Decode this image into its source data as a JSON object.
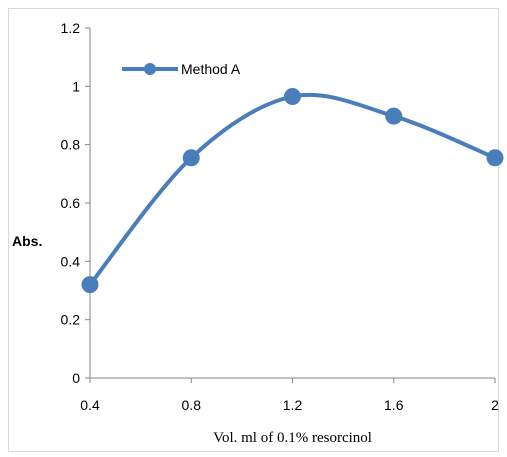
{
  "chart_data": {
    "type": "line",
    "title": "",
    "xlabel": "Vol. ml of 0.1% resorcinol",
    "ylabel": "Abs.",
    "xlim": [
      0.4,
      2
    ],
    "ylim": [
      0,
      1.2
    ],
    "x_tick_labels": [
      "0.4",
      "0.8",
      "1.2",
      "1.6",
      "2"
    ],
    "y_tick_labels": [
      "0",
      "0.2",
      "0.4",
      "0.6",
      "0.8",
      "1",
      "1.2"
    ],
    "grid": false,
    "legend": "top-left",
    "smooth": true,
    "series": [
      {
        "name": "Method A",
        "color": "#4a7ebb",
        "marker": "circle",
        "x": [
          0.4,
          0.8,
          1.2,
          1.6,
          2.0
        ],
        "y": [
          0.32,
          0.755,
          0.965,
          0.898,
          0.755
        ]
      }
    ]
  }
}
